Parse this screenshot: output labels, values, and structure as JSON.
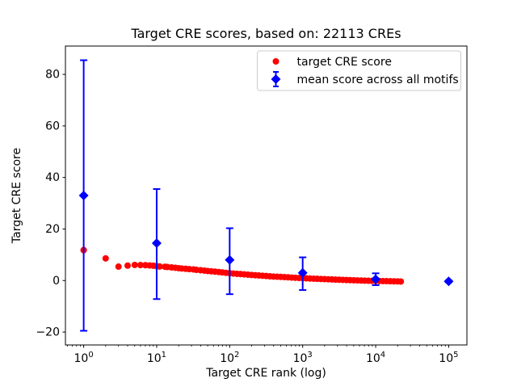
{
  "figure": {
    "background": "#ffffff",
    "title": "Target CRE scores, based on: 22113 CREs"
  },
  "chart_data": {
    "type": "scatter",
    "title": "Target CRE scores, based on: 22113 CREs",
    "xlabel": "Target CRE rank (log)",
    "ylabel": "Target CRE score",
    "x_scale": "log",
    "xlim_log10": [
      -0.25,
      5.25
    ],
    "ylim": [
      -25,
      91
    ],
    "yticks": [
      -20,
      0,
      20,
      40,
      60,
      80
    ],
    "xtick_exponents": [
      0,
      1,
      2,
      3,
      4,
      5
    ],
    "grid": false,
    "legend_position": "upper right",
    "colors": {
      "target_series": "#ff0000",
      "mean_series": "#0000ff",
      "axes": "#000000",
      "legend_border": "#cccccc"
    },
    "series": [
      {
        "name": "target CRE score",
        "type": "scatter",
        "marker": "circle",
        "color": "#ff0000",
        "points": [
          [
            1,
            11.8
          ],
          [
            2,
            8.6
          ],
          [
            3,
            5.4
          ],
          [
            4,
            5.8
          ],
          [
            5,
            6.05
          ],
          [
            6,
            6.0
          ],
          [
            7,
            5.95
          ],
          [
            8,
            5.85
          ],
          [
            9,
            5.75
          ],
          [
            10,
            5.55
          ],
          [
            11,
            5.45
          ],
          [
            13,
            5.35
          ],
          [
            14,
            5.25
          ],
          [
            16,
            5.1
          ],
          [
            18,
            4.95
          ],
          [
            20,
            4.8
          ],
          [
            22,
            4.68
          ],
          [
            25,
            4.55
          ],
          [
            28,
            4.42
          ],
          [
            32,
            4.3
          ],
          [
            35,
            4.15
          ],
          [
            40,
            4.0
          ],
          [
            45,
            3.85
          ],
          [
            50,
            3.7
          ],
          [
            56,
            3.58
          ],
          [
            63,
            3.45
          ],
          [
            71,
            3.3
          ],
          [
            79,
            3.15
          ],
          [
            89,
            3.0
          ],
          [
            100,
            2.85
          ],
          [
            112,
            2.72
          ],
          [
            126,
            2.6
          ],
          [
            141,
            2.5
          ],
          [
            158,
            2.4
          ],
          [
            178,
            2.28
          ],
          [
            200,
            2.15
          ],
          [
            224,
            2.05
          ],
          [
            251,
            1.95
          ],
          [
            282,
            1.85
          ],
          [
            316,
            1.75
          ],
          [
            355,
            1.65
          ],
          [
            398,
            1.55
          ],
          [
            447,
            1.48
          ],
          [
            501,
            1.4
          ],
          [
            562,
            1.32
          ],
          [
            631,
            1.25
          ],
          [
            708,
            1.15
          ],
          [
            794,
            1.08
          ],
          [
            891,
            1.0
          ],
          [
            1000,
            0.92
          ],
          [
            1122,
            0.85
          ],
          [
            1259,
            0.78
          ],
          [
            1413,
            0.72
          ],
          [
            1585,
            0.65
          ],
          [
            1778,
            0.6
          ],
          [
            1995,
            0.55
          ],
          [
            2239,
            0.48
          ],
          [
            2512,
            0.42
          ],
          [
            2818,
            0.36
          ],
          [
            3162,
            0.3
          ],
          [
            3548,
            0.25
          ],
          [
            3981,
            0.2
          ],
          [
            4467,
            0.15
          ],
          [
            5012,
            0.1
          ],
          [
            5623,
            0.05
          ],
          [
            6310,
            0.0
          ],
          [
            7079,
            -0.05
          ],
          [
            7943,
            -0.08
          ],
          [
            8913,
            -0.12
          ],
          [
            10000,
            -0.15
          ],
          [
            11220,
            -0.18
          ],
          [
            12589,
            -0.22
          ],
          [
            14125,
            -0.25
          ],
          [
            15849,
            -0.28
          ],
          [
            17783,
            -0.31
          ],
          [
            19953,
            -0.34
          ],
          [
            22113,
            -0.37
          ]
        ]
      },
      {
        "name": "mean score across all motifs",
        "type": "errorbar",
        "marker": "diamond",
        "color": "#0000ff",
        "points_format": [
          "rank",
          "mean",
          "err_low",
          "err_high"
        ],
        "points": [
          [
            1,
            33.0,
            -19.5,
            85.5
          ],
          [
            10,
            14.5,
            -7.2,
            35.5
          ],
          [
            100,
            8.0,
            -5.3,
            20.3
          ],
          [
            1000,
            3.0,
            -3.7,
            9.0
          ],
          [
            10000,
            0.5,
            -1.8,
            2.8
          ],
          [
            100000,
            -0.3,
            -0.6,
            0.0
          ]
        ]
      }
    ]
  }
}
